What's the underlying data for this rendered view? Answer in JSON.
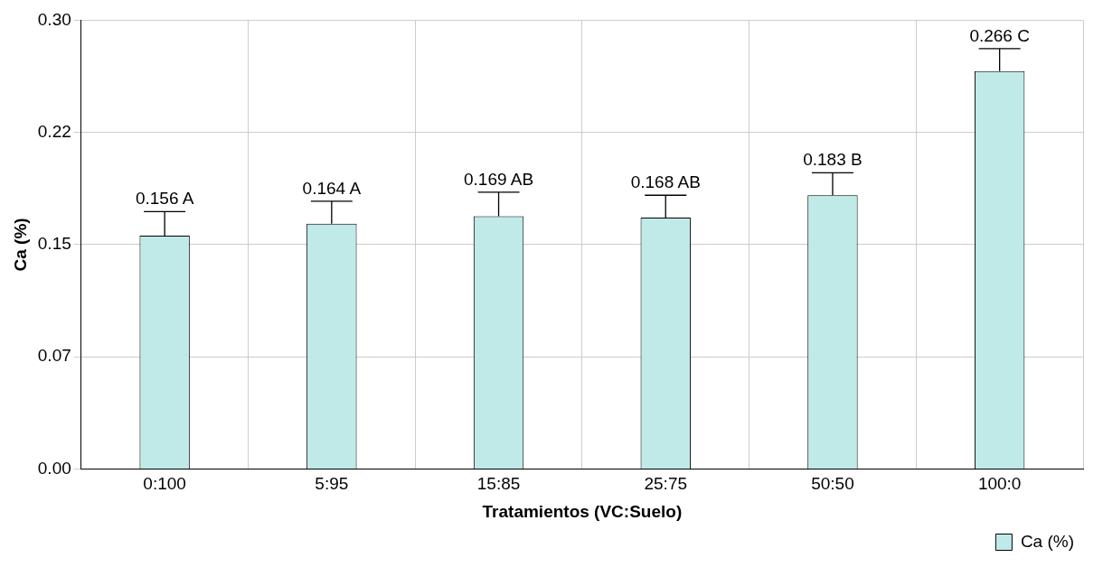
{
  "chart_data": {
    "type": "bar",
    "xlabel": "Tratamientos (VC:Suelo)",
    "ylabel": "Ca (%)",
    "categories": [
      "0:100",
      "5:95",
      "15:85",
      "25:75",
      "50:50",
      "100:0"
    ],
    "series": [
      {
        "name": "Ca (%)",
        "color": "#bfeae8",
        "values": [
          0.156,
          0.164,
          0.169,
          0.168,
          0.183,
          0.266
        ],
        "errors": [
          [
            0.156,
            0.172
          ],
          [
            0.164,
            0.179
          ],
          [
            0.169,
            0.185
          ],
          [
            0.168,
            0.183
          ],
          [
            0.183,
            0.198
          ],
          [
            0.266,
            0.281
          ]
        ],
        "value_labels": [
          "0.156 A",
          "0.164 A",
          "0.169 AB",
          "0.168 AB",
          "0.183 B",
          "0.266 C"
        ]
      }
    ],
    "ylim": [
      0,
      0.3
    ],
    "yticks": [
      {
        "value": 0,
        "label": "0.00"
      },
      {
        "value": 0.075,
        "label": "0.07"
      },
      {
        "value": 0.15,
        "label": "0.15"
      },
      {
        "value": 0.225,
        "label": "0.22"
      },
      {
        "value": 0.3,
        "label": "0.30"
      }
    ],
    "grid": true,
    "legend": "bottom right"
  }
}
